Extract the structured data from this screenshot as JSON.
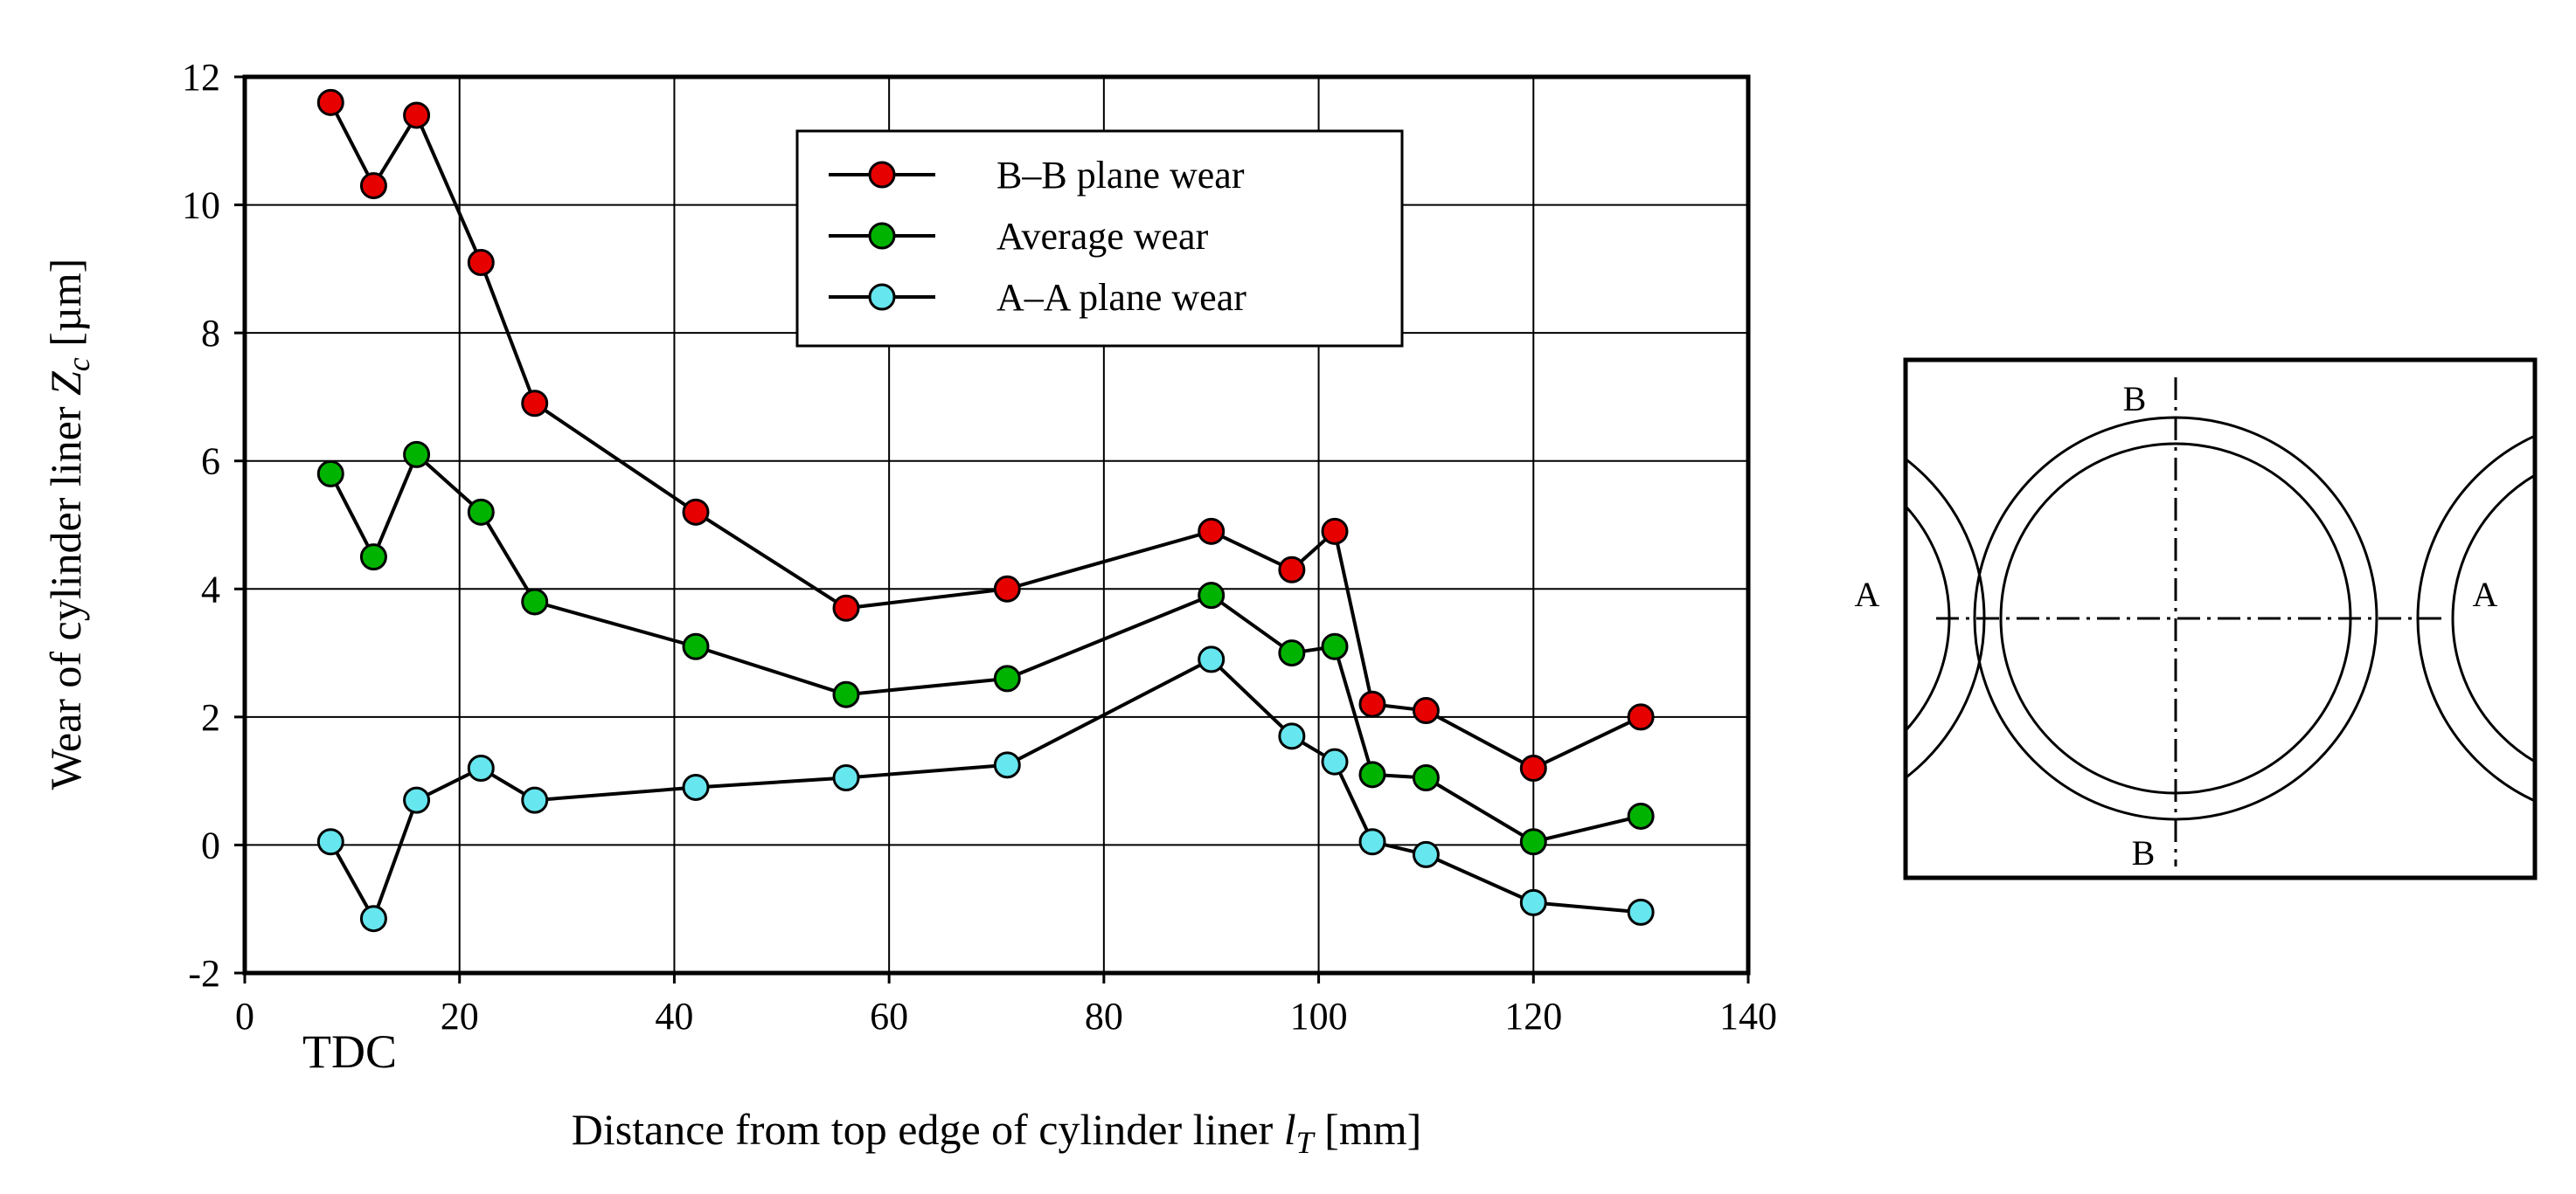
{
  "chart_data": {
    "type": "line",
    "title": "",
    "xlabel": {
      "prefix": "Distance from top edge of cylinder liner ",
      "symbol": "l",
      "sub": "T",
      "unit": " [mm]"
    },
    "ylabel": {
      "prefix": "Wear of cylinder liner ",
      "symbol": "Z",
      "sub": "c",
      "unit": " [µm]"
    },
    "xlim": [
      0,
      140
    ],
    "ylim": [
      -2,
      12
    ],
    "xticks": [
      0,
      20,
      40,
      60,
      80,
      100,
      120,
      140
    ],
    "yticks": [
      -2,
      0,
      2,
      4,
      6,
      8,
      10,
      12
    ],
    "grid": true,
    "annotation": "TDC",
    "legend_position": "top-center",
    "x": [
      8,
      12,
      16,
      22,
      27,
      42,
      56,
      71,
      90,
      97.5,
      101.5,
      105,
      110,
      120,
      130
    ],
    "series": [
      {
        "name": "B–B plane wear",
        "color": "#e60000",
        "values": [
          11.6,
          10.3,
          11.4,
          9.1,
          6.9,
          5.2,
          3.7,
          4.0,
          4.9,
          4.3,
          4.9,
          2.2,
          2.1,
          1.2,
          2.0
        ]
      },
      {
        "name": "Average wear",
        "color": "#00b300",
        "values": [
          5.8,
          4.5,
          6.1,
          5.2,
          3.8,
          3.1,
          2.35,
          2.6,
          3.9,
          3.0,
          3.1,
          1.1,
          1.05,
          0.05,
          0.45
        ]
      },
      {
        "name": "A–A plane wear",
        "color": "#66e6ee",
        "values": [
          0.05,
          -1.15,
          0.7,
          1.2,
          0.7,
          0.9,
          1.05,
          1.25,
          2.9,
          1.7,
          1.3,
          0.05,
          -0.15,
          -0.9,
          -1.05
        ]
      }
    ]
  },
  "diagram": {
    "plane_a_label": "A",
    "plane_b_label": "B"
  }
}
